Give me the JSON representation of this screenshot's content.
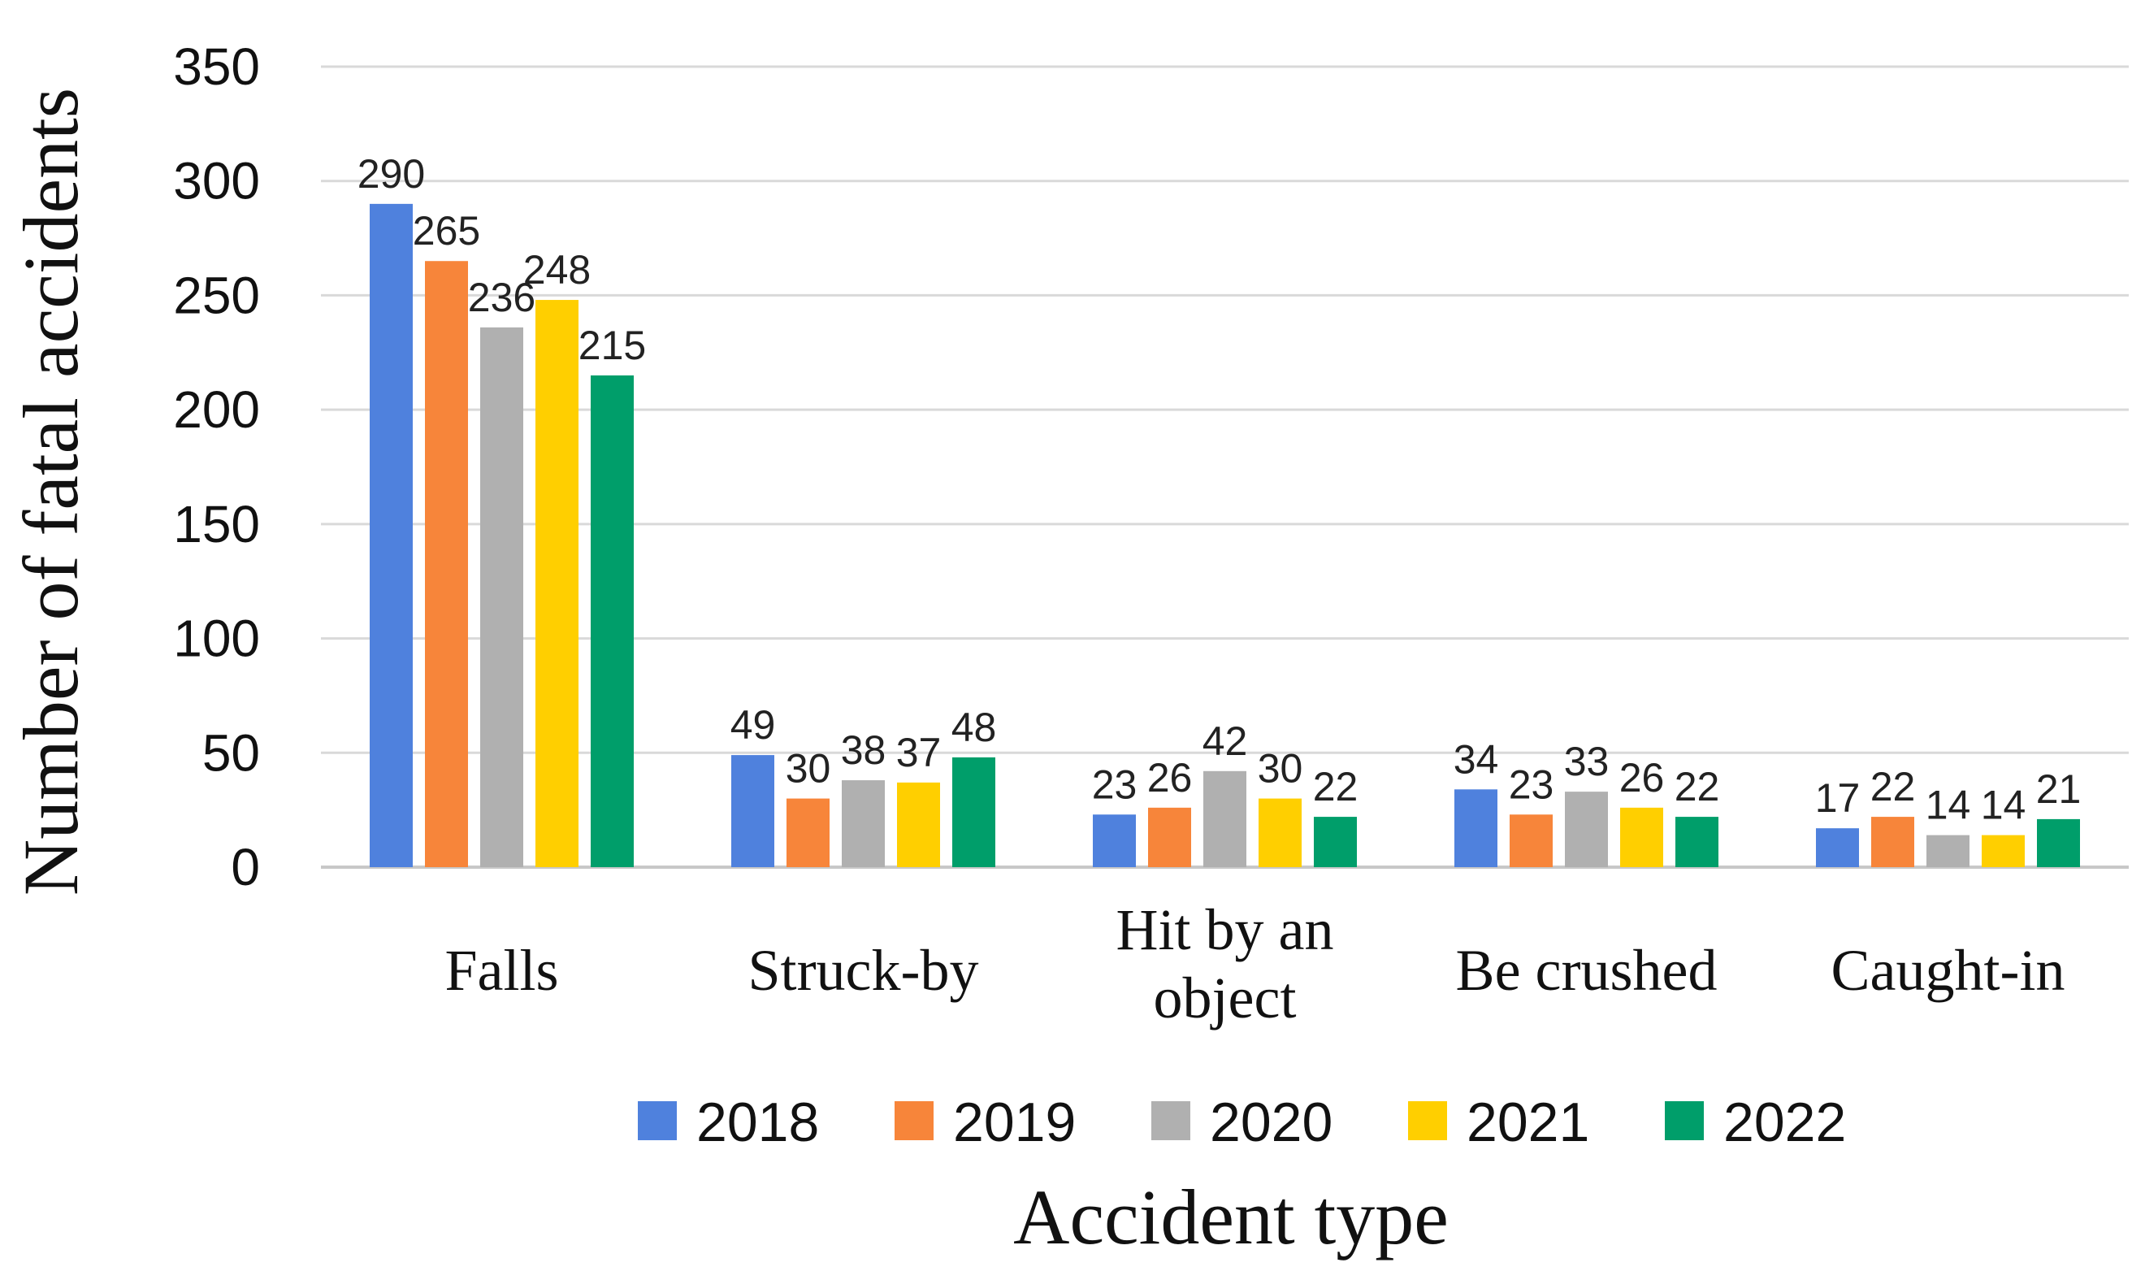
{
  "chart_data": {
    "type": "bar",
    "title": "",
    "xlabel": "Accident type",
    "ylabel": "Number of fatal accidents",
    "ylim": [
      0,
      350
    ],
    "yticks": [
      0,
      50,
      100,
      150,
      200,
      250,
      300,
      350
    ],
    "grid": true,
    "legend_position": "bottom",
    "categories": [
      [
        "Falls"
      ],
      [
        "Struck-by"
      ],
      [
        "Hit by an",
        "object"
      ],
      [
        "Be crushed"
      ],
      [
        "Caught-in"
      ]
    ],
    "series": [
      {
        "name": "2018",
        "color": "#4F81DD",
        "values": [
          290,
          49,
          23,
          34,
          17
        ]
      },
      {
        "name": "2019",
        "color": "#F7853A",
        "values": [
          265,
          30,
          26,
          23,
          22
        ]
      },
      {
        "name": "2020",
        "color": "#B0B0B0",
        "values": [
          236,
          38,
          42,
          33,
          14
        ]
      },
      {
        "name": "2021",
        "color": "#FFCF00",
        "values": [
          248,
          37,
          30,
          26,
          14
        ]
      },
      {
        "name": "2022",
        "color": "#009E6A",
        "values": [
          215,
          48,
          22,
          22,
          21
        ]
      }
    ]
  }
}
